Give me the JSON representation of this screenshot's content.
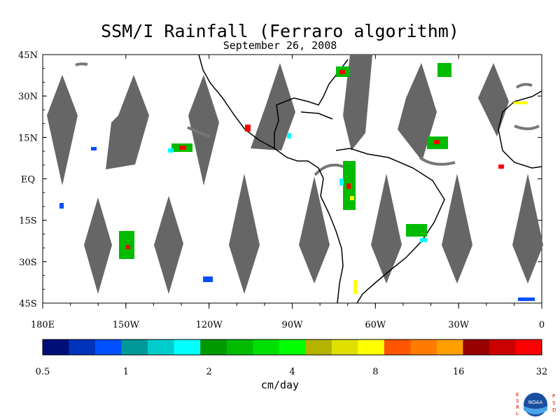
{
  "title": "SSM/I Rainfall (Ferraro algorithm)",
  "date": "September 26, 2008",
  "lat_labels": [
    "45N",
    "30N",
    "15N",
    "EQ",
    "15S",
    "30S",
    "45S"
  ],
  "lon_labels": [
    "180E",
    "150W",
    "120W",
    "90W",
    "60W",
    "30W",
    "0"
  ],
  "map": {
    "lon_range": [
      -180,
      0
    ],
    "lat_range": [
      -45,
      45
    ]
  },
  "colorbar": {
    "units": "cm/day",
    "ticks": [
      "0.5",
      "1",
      "2",
      "4",
      "8",
      "16",
      "32"
    ],
    "colors": [
      "#000e7a",
      "#0033bb",
      "#0050ff",
      "#009999",
      "#00cccc",
      "#00ffff",
      "#009900",
      "#00bb00",
      "#00e000",
      "#00ff00",
      "#b3b300",
      "#e0e000",
      "#ffff00",
      "#ff5500",
      "#ff7b00",
      "#ffa000",
      "#990000",
      "#cc0000",
      "#ff0000"
    ]
  },
  "colors": {
    "swath_gap": "#666666",
    "coast": "#000000",
    "frame": "#000000"
  },
  "logo": {
    "left_text": "ESRL",
    "right_text": "PSD",
    "center_text": "NOAA"
  }
}
